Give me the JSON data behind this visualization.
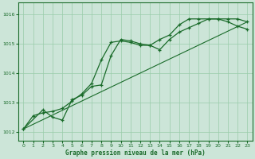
{
  "xlabel": "Graphe pression niveau de la mer (hPa)",
  "xlim": [
    -0.5,
    23.5
  ],
  "ylim": [
    1011.7,
    1016.4
  ],
  "yticks": [
    1012,
    1013,
    1014,
    1015,
    1016
  ],
  "xticks": [
    0,
    1,
    2,
    3,
    4,
    5,
    6,
    7,
    8,
    9,
    10,
    11,
    12,
    13,
    14,
    15,
    16,
    17,
    18,
    19,
    20,
    21,
    22,
    23
  ],
  "bg_color": "#cce5d8",
  "grid_color": "#99ccaa",
  "line_color": "#1a6b2a",
  "line1_x": [
    0,
    1,
    2,
    3,
    4,
    5,
    6,
    7,
    8,
    9,
    10,
    11,
    12,
    13,
    14,
    15,
    16,
    17,
    18,
    19,
    20,
    21,
    22,
    23
  ],
  "line1_y": [
    1012.1,
    1012.55,
    1012.65,
    1012.7,
    1012.8,
    1013.05,
    1013.3,
    1013.65,
    1014.45,
    1015.05,
    1015.1,
    1015.05,
    1014.95,
    1014.95,
    1014.8,
    1015.15,
    1015.4,
    1015.55,
    1015.7,
    1015.85,
    1015.85,
    1015.85,
    1015.85,
    1015.75
  ],
  "line2_x": [
    0,
    2,
    3,
    4,
    5,
    6,
    7,
    8,
    9,
    10,
    11,
    12,
    13,
    14,
    15,
    16,
    17,
    18,
    19,
    20,
    21,
    22,
    23
  ],
  "line2_y": [
    1012.1,
    1012.75,
    1012.5,
    1012.4,
    1013.1,
    1013.25,
    1013.55,
    1013.6,
    1014.6,
    1015.15,
    1015.1,
    1015.0,
    1014.95,
    1015.15,
    1015.3,
    1015.65,
    1015.85,
    1015.85,
    1015.85,
    1015.85,
    1015.75,
    1015.6,
    1015.5
  ],
  "line3_x": [
    0,
    23
  ],
  "line3_y": [
    1012.1,
    1015.75
  ]
}
